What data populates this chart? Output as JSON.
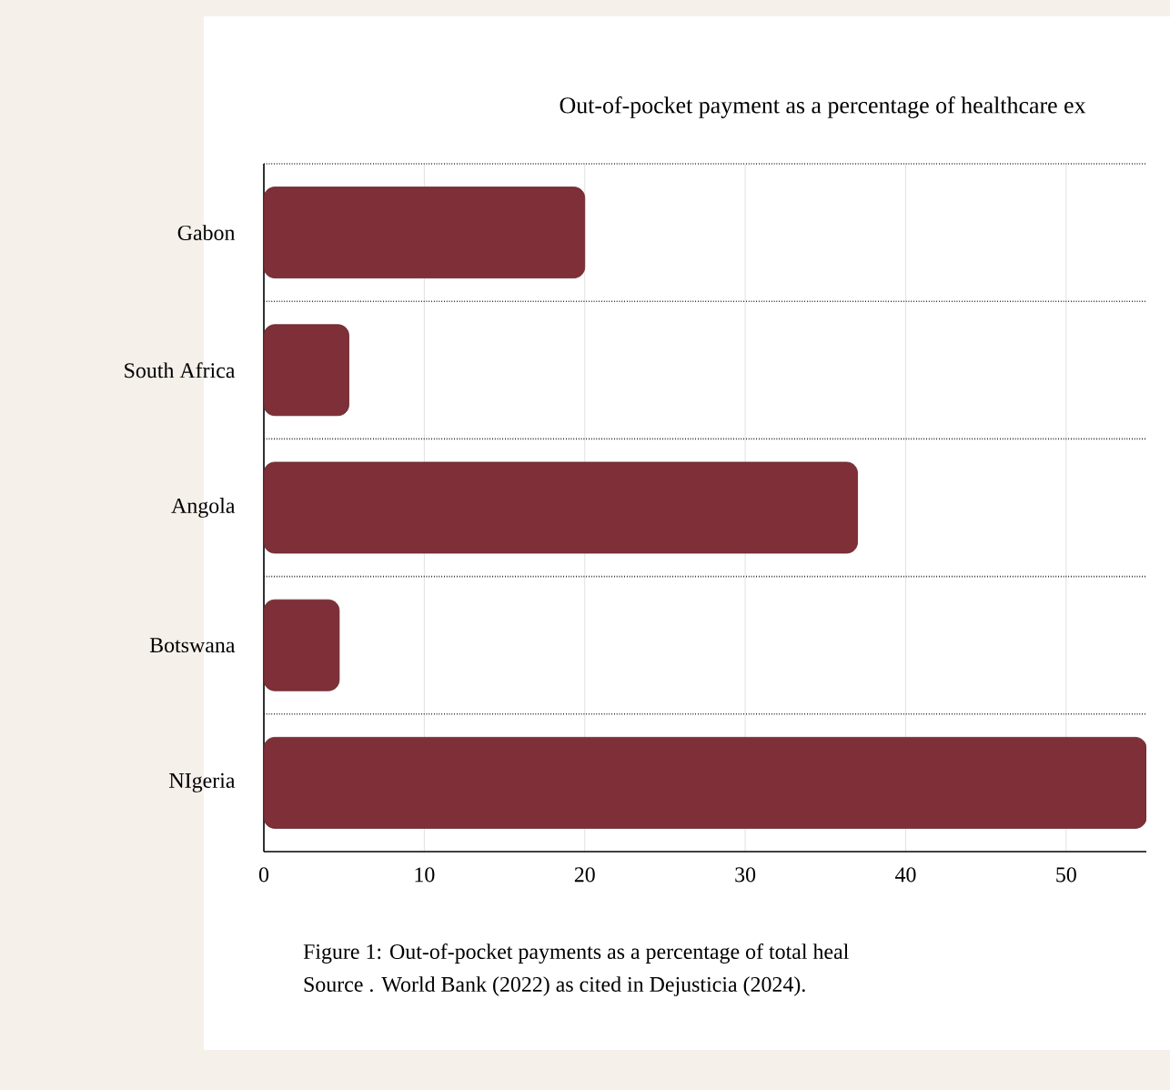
{
  "chart_data": {
    "type": "bar",
    "orientation": "horizontal",
    "title": "Out-of-pocket payment as a percentage of healthcare ex",
    "categories": [
      "Gabon",
      "South Africa",
      "Angola",
      "Botswana",
      "NIgeria"
    ],
    "values": [
      20,
      5.3,
      37,
      4.7,
      55
    ],
    "color": "#7e2f37",
    "xlim": [
      0,
      55
    ],
    "xticks": [
      0,
      10,
      20,
      30,
      40,
      50
    ],
    "grid": "x",
    "annotations": [
      "Figure 1: Out-of-pocket payments as a percentage of total heal",
      "Source . World Bank (2022) as cited in Dejusticia (2024)."
    ]
  }
}
